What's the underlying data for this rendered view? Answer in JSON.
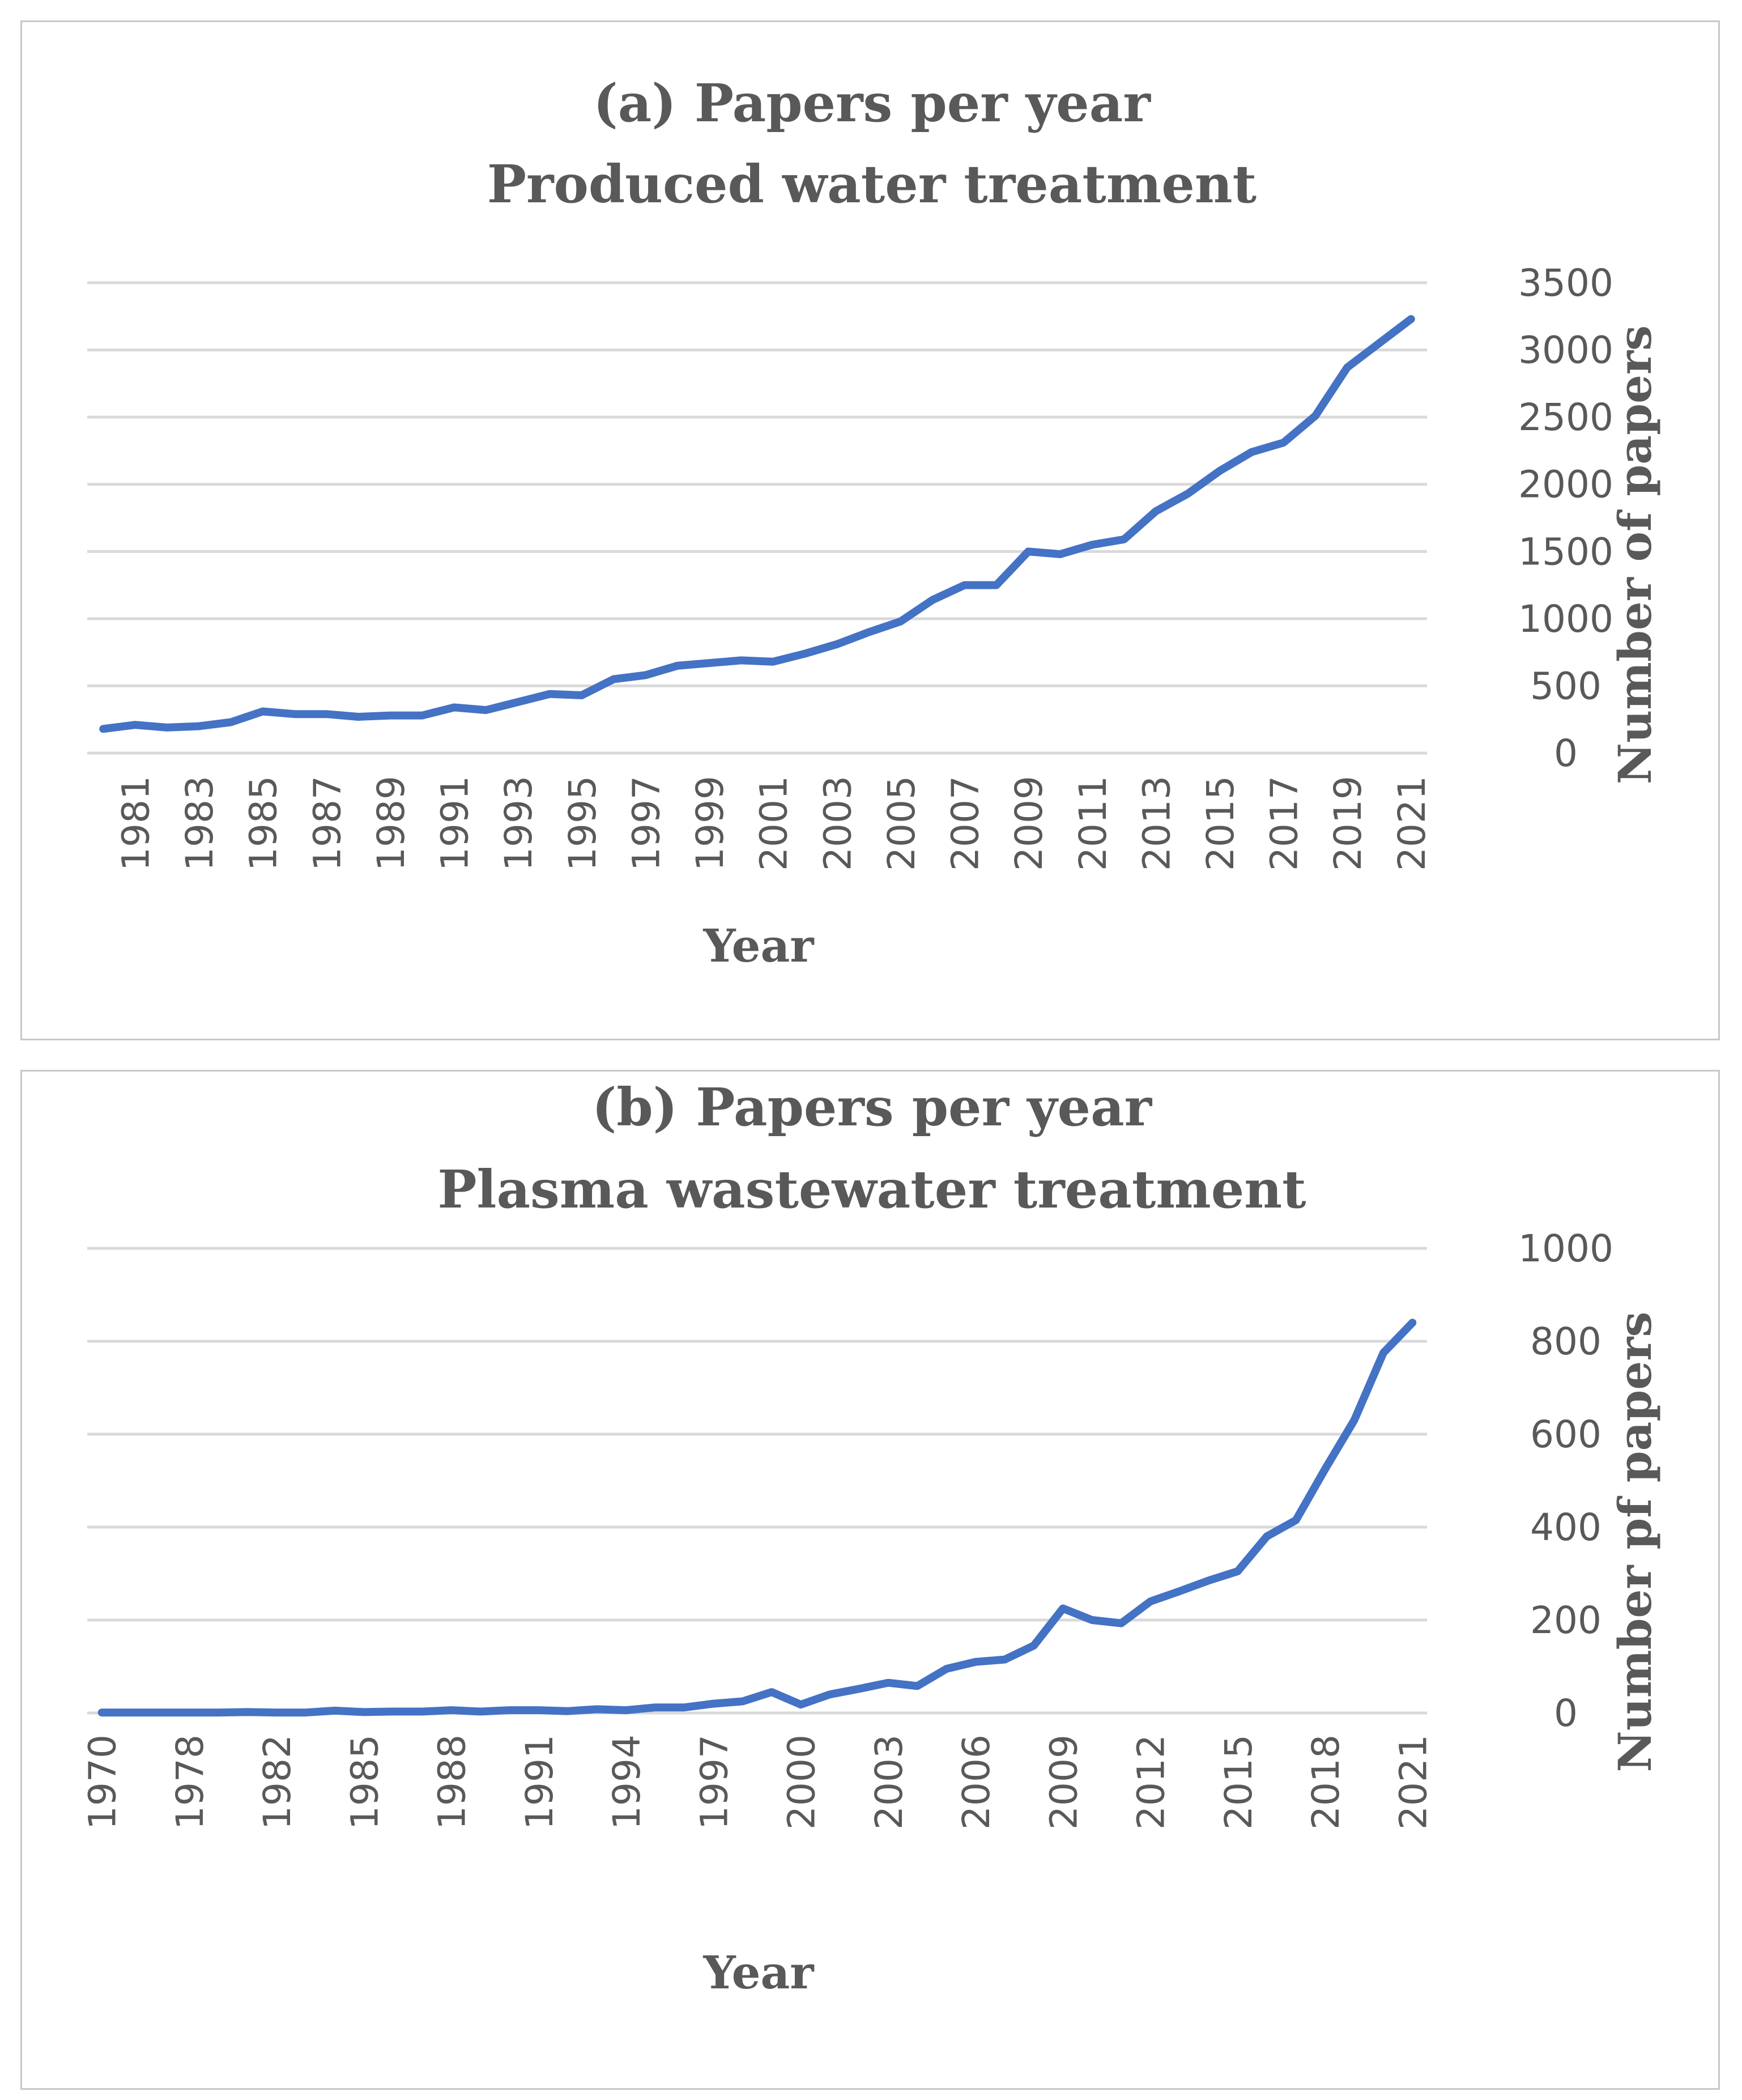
{
  "chart_data": [
    {
      "type": "line",
      "title_line1": "(a) Papers per year",
      "title_line2": "Produced water treatment",
      "xlabel": "Year",
      "ylabel": "Number of papers",
      "ylim": [
        0,
        3500
      ],
      "y_ticks": [
        "0",
        "500",
        "1000",
        "1500",
        "2000",
        "2500",
        "3000",
        "3500"
      ],
      "x_tick_labels": [
        "1981",
        "1983",
        "1985",
        "1987",
        "1989",
        "1991",
        "1993",
        "1995",
        "1997",
        "1999",
        "2001",
        "2003",
        "2005",
        "2007",
        "2009",
        "2011",
        "2013",
        "2015",
        "2017",
        "2019",
        "2021"
      ],
      "x": [
        1980,
        1981,
        1982,
        1983,
        1984,
        1985,
        1986,
        1987,
        1988,
        1989,
        1990,
        1991,
        1992,
        1993,
        1994,
        1995,
        1996,
        1997,
        1998,
        1999,
        2000,
        2001,
        2002,
        2003,
        2004,
        2005,
        2006,
        2007,
        2008,
        2009,
        2010,
        2011,
        2012,
        2013,
        2014,
        2015,
        2016,
        2017,
        2018,
        2019,
        2020,
        2021
      ],
      "series": [
        {
          "name": "Number of papers",
          "values": [
            180,
            210,
            190,
            200,
            230,
            310,
            290,
            290,
            270,
            280,
            280,
            340,
            320,
            380,
            440,
            430,
            550,
            580,
            650,
            670,
            690,
            680,
            740,
            810,
            900,
            980,
            1140,
            1250,
            1250,
            1500,
            1480,
            1550,
            1590,
            1800,
            1930,
            2100,
            2240,
            2310,
            2510,
            2870,
            3050,
            3230
          ]
        }
      ],
      "grid": true,
      "y_axis_side": "right"
    },
    {
      "type": "line",
      "title_line1": "(b) Papers per year",
      "title_line2": "Plasma wastewater treatment",
      "xlabel": "Year",
      "ylabel": "Number pf papers",
      "ylim": [
        0,
        1000
      ],
      "y_ticks": [
        "0",
        "200",
        "400",
        "600",
        "800",
        "1000"
      ],
      "x_tick_labels": [
        "1970",
        "1978",
        "1982",
        "1985",
        "1988",
        "1991",
        "1994",
        "1997",
        "2000",
        "2003",
        "2006",
        "2009",
        "2012",
        "2015",
        "2018",
        "2021"
      ],
      "x": [
        "1970",
        "1976",
        "1977",
        "1978",
        "1979",
        "1981",
        "1982",
        "1983",
        "1984",
        "1985",
        "1986",
        "1987",
        "1988",
        "1989",
        "1990",
        "1991",
        "1992",
        "1993",
        "1994",
        "1995",
        "1996",
        "1997",
        "1998",
        "1999",
        "2000",
        "2001",
        "2002",
        "2003",
        "2004",
        "2005",
        "2006",
        "2007",
        "2008",
        "2009",
        "2010",
        "2011",
        "2012",
        "2013",
        "2014",
        "2015",
        "2016",
        "2017",
        "2018",
        "2019",
        "2020",
        "2021"
      ],
      "series": [
        {
          "name": "Number pf papers",
          "values": [
            1,
            1,
            1,
            1,
            1,
            2,
            1,
            1,
            5,
            2,
            3,
            3,
            6,
            3,
            6,
            6,
            4,
            8,
            6,
            12,
            12,
            20,
            25,
            45,
            18,
            40,
            52,
            65,
            58,
            95,
            110,
            115,
            145,
            225,
            200,
            193,
            240,
            262,
            285,
            305,
            380,
            415,
            525,
            630,
            775,
            840
          ]
        }
      ],
      "grid": true,
      "y_axis_side": "right"
    }
  ]
}
